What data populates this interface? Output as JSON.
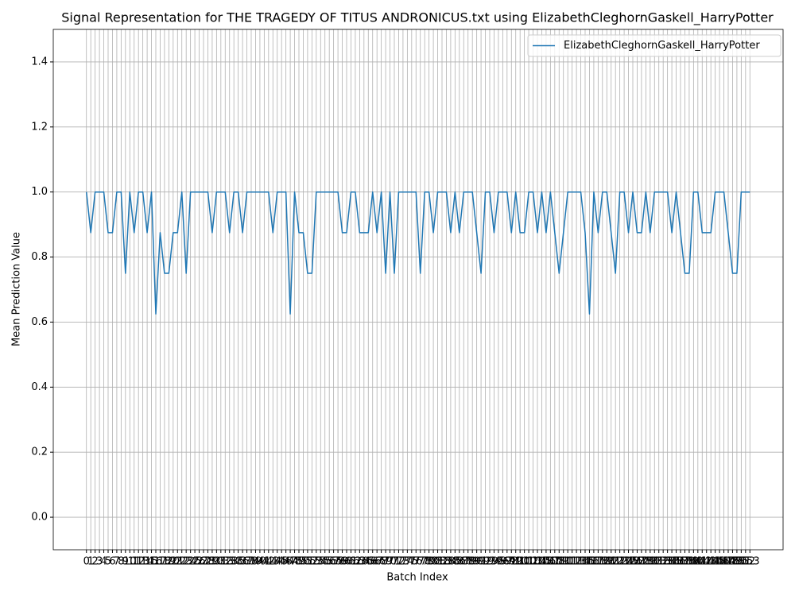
{
  "chart_data": {
    "type": "line",
    "title": "Signal Representation for THE TRAGEDY OF TITUS ANDRONICUS.txt using ElizabethCleghornGaskell_HarryPotter",
    "x_label": "Batch Index",
    "y_label": "Mean Prediction Value",
    "x": [
      0,
      1,
      2,
      3,
      4,
      5,
      6,
      7,
      8,
      9,
      10,
      11,
      12,
      13,
      14,
      15,
      16,
      17,
      18,
      19,
      20,
      21,
      22,
      23,
      24,
      25,
      26,
      27,
      28,
      29,
      30,
      31,
      32,
      33,
      34,
      35,
      36,
      37,
      38,
      39,
      40,
      41,
      42,
      43,
      44,
      45,
      46,
      47,
      48,
      49,
      50,
      51,
      52,
      53,
      54,
      55,
      56,
      57,
      58,
      59,
      60,
      61,
      62,
      63,
      64,
      65,
      66,
      67,
      68,
      69,
      70,
      71,
      72,
      73,
      74,
      75,
      76,
      77,
      78,
      79,
      80,
      81,
      82,
      83,
      84,
      85,
      86,
      87,
      88,
      89,
      90,
      91,
      92,
      93,
      94,
      95,
      96,
      97,
      98,
      99,
      100,
      101,
      102,
      103,
      104,
      105,
      106,
      107,
      108,
      109,
      110,
      111,
      112,
      113,
      114,
      115,
      116,
      117,
      118,
      119,
      120,
      121,
      122,
      123,
      124,
      125,
      126,
      127,
      128,
      129,
      130,
      131,
      132,
      133,
      134,
      135,
      136,
      137,
      138,
      139,
      140,
      141,
      142,
      143,
      144,
      145,
      146,
      147,
      148,
      149,
      150,
      151,
      152,
      153
    ],
    "series": [
      {
        "name": "ElizabethCleghornGaskell_HarryPotter",
        "color": "#1f77b4",
        "values": [
          1,
          0.875,
          1,
          1,
          1,
          0.875,
          0.875,
          1,
          1,
          0.75,
          1,
          0.875,
          1,
          1,
          0.875,
          1,
          0.625,
          0.875,
          0.75,
          0.75,
          0.875,
          0.875,
          1,
          0.75,
          1,
          1,
          1,
          1,
          1,
          0.875,
          1,
          1,
          1,
          0.875,
          1,
          1,
          0.875,
          1,
          1,
          1,
          1,
          1,
          1,
          0.875,
          1,
          1,
          1,
          0.625,
          1,
          0.875,
          0.875,
          0.75,
          0.75,
          1,
          1,
          1,
          1,
          1,
          1,
          0.875,
          0.875,
          1,
          1,
          0.875,
          0.875,
          0.875,
          1,
          0.875,
          1,
          0.75,
          1,
          0.75,
          1,
          1,
          1,
          1,
          1,
          0.75,
          1,
          1,
          0.875,
          1,
          1,
          1,
          0.875,
          1,
          0.875,
          1,
          1,
          1,
          0.875,
          0.75,
          1,
          1,
          0.875,
          1,
          1,
          1,
          0.875,
          1,
          0.875,
          0.875,
          1,
          1,
          0.875,
          1,
          0.875,
          1,
          0.875,
          0.75,
          0.875,
          1,
          1,
          1,
          1,
          0.875,
          0.625,
          1,
          0.875,
          1,
          1,
          0.875,
          0.75,
          1,
          1,
          0.875,
          1,
          0.875,
          0.875,
          1,
          0.875,
          1,
          1,
          1,
          1,
          0.875,
          1,
          0.875,
          0.75,
          0.75,
          1,
          1,
          0.875,
          0.875,
          0.875,
          1,
          1,
          1,
          0.875,
          0.75,
          0.75,
          1,
          1,
          1
        ]
      }
    ],
    "xlim": [
      -7.65,
      160.65
    ],
    "xticks": [
      0,
      1,
      2,
      3,
      4,
      5,
      6,
      7,
      8,
      9,
      10,
      11,
      12,
      13,
      14,
      15,
      16,
      17,
      18,
      19,
      20,
      21,
      22,
      23,
      24,
      25,
      26,
      27,
      28,
      29,
      30,
      31,
      32,
      33,
      34,
      35,
      36,
      37,
      38,
      39,
      40,
      41,
      42,
      43,
      44,
      45,
      46,
      47,
      48,
      49,
      50,
      51,
      52,
      53,
      54,
      55,
      56,
      57,
      58,
      59,
      60,
      61,
      62,
      63,
      64,
      65,
      66,
      67,
      68,
      69,
      70,
      71,
      72,
      73,
      74,
      75,
      76,
      77,
      78,
      79,
      80,
      81,
      82,
      83,
      84,
      85,
      86,
      87,
      88,
      89,
      90,
      91,
      92,
      93,
      94,
      95,
      96,
      97,
      98,
      99,
      100,
      101,
      102,
      103,
      104,
      105,
      106,
      107,
      108,
      109,
      110,
      111,
      112,
      113,
      114,
      115,
      116,
      117,
      118,
      119,
      120,
      121,
      122,
      123,
      124,
      125,
      126,
      127,
      128,
      129,
      130,
      131,
      132,
      133,
      134,
      135,
      136,
      137,
      138,
      139,
      140,
      141,
      142,
      143,
      144,
      145,
      146,
      147,
      148,
      149,
      150,
      151,
      152,
      153
    ],
    "ylim": [
      -0.1,
      1.5
    ],
    "yticks": [
      {
        "value": 0,
        "label": "0.0"
      },
      0.2,
      0.4,
      0.6,
      0.8,
      {
        "value": 1,
        "label": "1.0"
      },
      1.2,
      1.4
    ],
    "grid": true,
    "legend": "upper right"
  }
}
